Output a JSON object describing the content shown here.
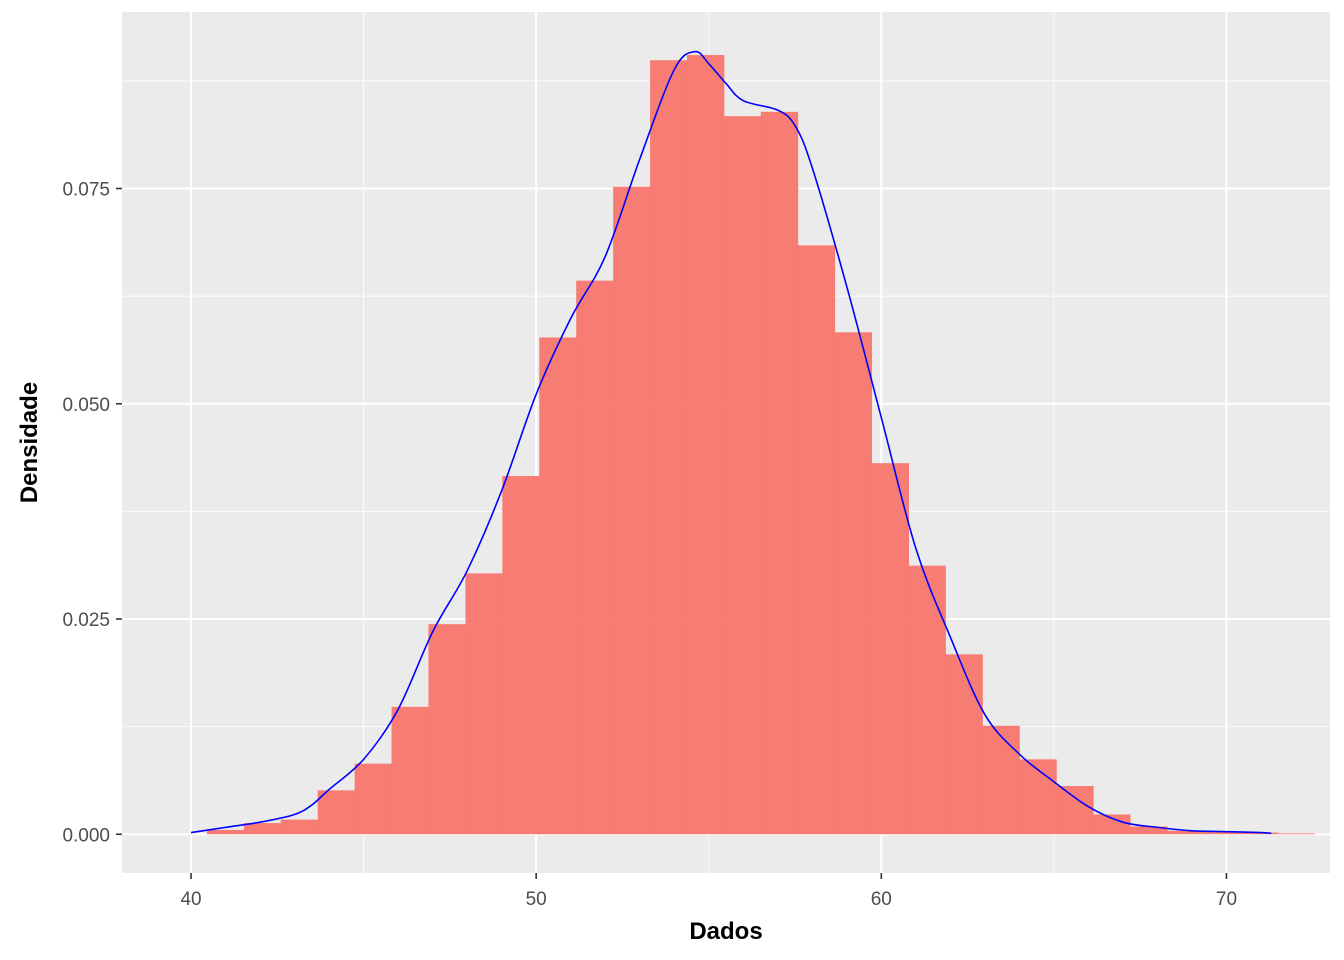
{
  "chart_data": {
    "type": "bar",
    "subtype": "histogram-with-density",
    "title": "",
    "xlabel": "Dados",
    "ylabel": "Densidade",
    "xlim": [
      38,
      73
    ],
    "ylim": [
      -0.0045,
      0.0955
    ],
    "x_ticks": [
      40,
      50,
      60,
      70
    ],
    "x_tick_labels": [
      "40",
      "50",
      "60",
      "70"
    ],
    "y_ticks": [
      0,
      0.025,
      0.05,
      0.075
    ],
    "y_tick_labels": [
      "0.000",
      "0.025",
      "0.050",
      "0.075"
    ],
    "grid": true,
    "legend": "none",
    "colors": {
      "panel": "#EBEBEB",
      "grid_major": "#FFFFFF",
      "bars": "#F8766D",
      "density": "#0000FF",
      "tick_text": "#4D4D4D",
      "tick_mark": "#333333"
    },
    "histogram": {
      "bin_width": 1.07,
      "bin_start": 40.46,
      "values": [
        0.0005,
        0.0013,
        0.0017,
        0.0051,
        0.0082,
        0.0148,
        0.0244,
        0.0303,
        0.0416,
        0.0577,
        0.0643,
        0.0752,
        0.0899,
        0.0905,
        0.0834,
        0.0839,
        0.0684,
        0.0583,
        0.0431,
        0.0312,
        0.0209,
        0.0126,
        0.0087,
        0.0056,
        0.0023,
        0.0009,
        0.0004,
        0.0003,
        0.0002,
        0.0001
      ]
    },
    "density": {
      "x": [
        40.0,
        41.0,
        42.0,
        43.0,
        43.5,
        44.0,
        45.0,
        46.0,
        47.0,
        48.0,
        49.0,
        50.0,
        51.0,
        52.0,
        53.0,
        54.0,
        54.6,
        55.0,
        55.5,
        56.0,
        57.0,
        57.5,
        58.0,
        59.0,
        60.0,
        61.0,
        62.0,
        63.0,
        64.0,
        65.0,
        66.0,
        67.0,
        68.0,
        69.0,
        70.0,
        71.0,
        71.3
      ],
      "y": [
        0.0002,
        0.0008,
        0.0014,
        0.0023,
        0.0034,
        0.0052,
        0.0087,
        0.0145,
        0.0235,
        0.0306,
        0.0399,
        0.0511,
        0.0599,
        0.0671,
        0.0784,
        0.0888,
        0.0909,
        0.0895,
        0.0872,
        0.0852,
        0.0841,
        0.0823,
        0.0774,
        0.0636,
        0.0484,
        0.0332,
        0.0229,
        0.0139,
        0.0093,
        0.0061,
        0.0032,
        0.0014,
        0.0008,
        0.0004,
        0.0003,
        0.0002,
        0.0001
      ]
    }
  }
}
